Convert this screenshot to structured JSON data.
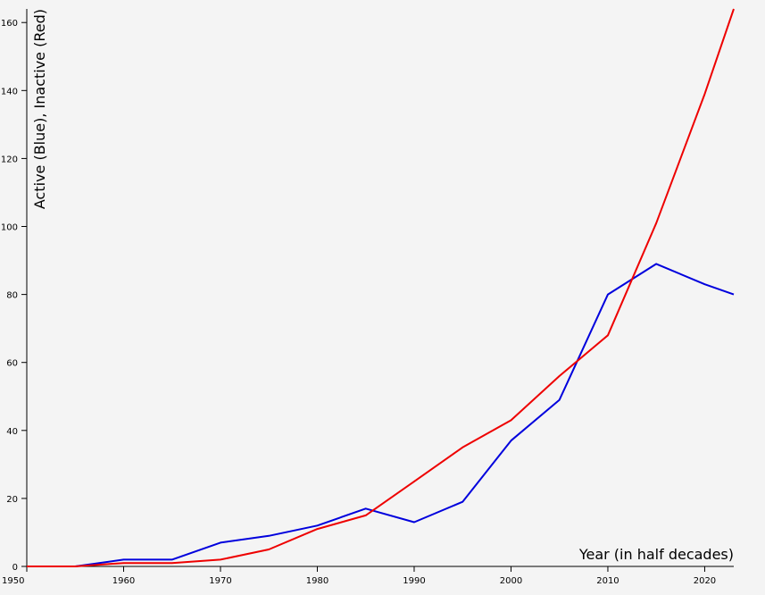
{
  "chart_data": {
    "type": "line",
    "xlabel": "Year (in half decades)",
    "ylabel": "Active (Blue), Inactive (Red)",
    "xlim": [
      1950,
      2023
    ],
    "ylim": [
      0,
      164
    ],
    "x_ticks": [
      1950,
      1960,
      1970,
      1980,
      1990,
      2000,
      2010,
      2020
    ],
    "y_ticks": [
      0,
      20,
      40,
      60,
      80,
      100,
      120,
      140,
      160
    ],
    "grid": false,
    "series": [
      {
        "color": "#0000dd",
        "x": [
          1950,
          1955,
          1960,
          1965,
          1970,
          1975,
          1980,
          1985,
          1990,
          1995,
          2000,
          2005,
          2010,
          2015,
          2020,
          2023
        ],
        "y": [
          0,
          0,
          2,
          2,
          7,
          9,
          12,
          17,
          13,
          19,
          37,
          49,
          80,
          89,
          83,
          80
        ]
      },
      {
        "color": "#ee0000",
        "x": [
          1950,
          1955,
          1960,
          1965,
          1970,
          1975,
          1980,
          1985,
          1990,
          1995,
          2000,
          2005,
          2010,
          2015,
          2020,
          2023
        ],
        "y": [
          0,
          0,
          1,
          1,
          2,
          5,
          11,
          15,
          25,
          35,
          43,
          56,
          68,
          101,
          139,
          164
        ]
      }
    ]
  }
}
